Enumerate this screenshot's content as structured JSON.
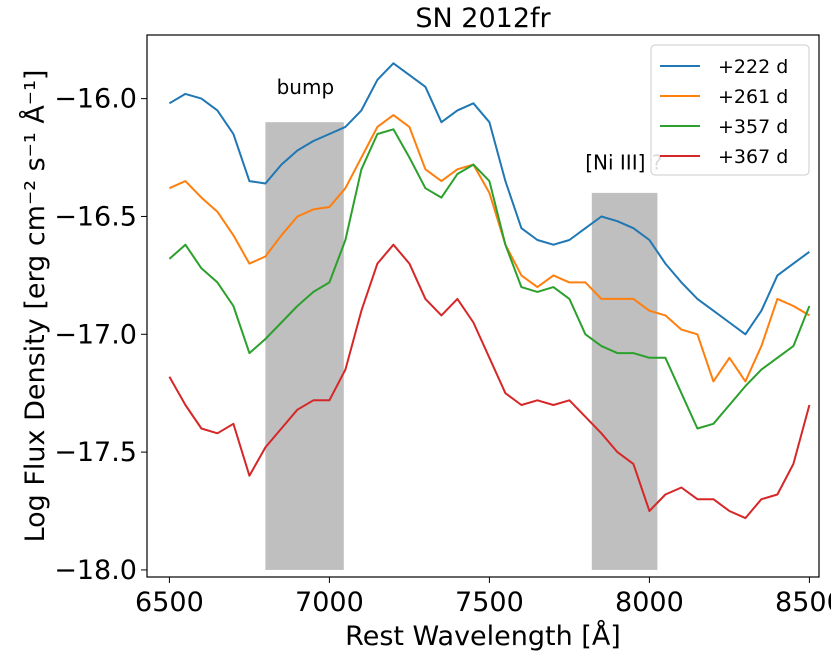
{
  "chart_data": {
    "type": "line",
    "title": "SN 2012fr",
    "xlabel": "Rest Wavelength [Å]",
    "ylabel": "Log Flux Density [erg cm⁻² s⁻¹ Å⁻¹]",
    "xlim": [
      6430,
      8530
    ],
    "ylim": [
      -18.03,
      -15.73
    ],
    "xticks": [
      6500,
      7000,
      7500,
      8000,
      8500
    ],
    "xtick_labels": [
      "6500",
      "7000",
      "7500",
      "8000",
      "8500"
    ],
    "yticks": [
      -16.0,
      -16.5,
      -17.0,
      -17.5,
      -18.0
    ],
    "ytick_labels": [
      "−16.0",
      "−16.5",
      "−17.0",
      "−17.5",
      "−18.0"
    ],
    "shaded_regions": [
      {
        "label": "bump",
        "x_range": [
          6800,
          7045
        ],
        "y_range": [
          -18.0,
          -16.1
        ],
        "color": "#bfbfbf"
      },
      {
        "label": "[Ni III] ?",
        "x_range": [
          7820,
          8025
        ],
        "y_range": [
          -18.0,
          -16.4
        ],
        "color": "#bfbfbf"
      }
    ],
    "legend_position": "top-right",
    "series": [
      {
        "name": "+222 d",
        "color": "#1f77b4",
        "x": [
          6500,
          6550,
          6600,
          6650,
          6700,
          6750,
          6800,
          6850,
          6900,
          6950,
          7000,
          7050,
          7100,
          7150,
          7200,
          7250,
          7300,
          7350,
          7400,
          7450,
          7500,
          7550,
          7600,
          7650,
          7700,
          7750,
          7800,
          7850,
          7900,
          7950,
          8000,
          8050,
          8100,
          8150,
          8200,
          8250,
          8300,
          8350,
          8400,
          8450,
          8500
        ],
        "values": [
          -16.02,
          -15.98,
          -16.0,
          -16.05,
          -16.15,
          -16.35,
          -16.36,
          -16.28,
          -16.22,
          -16.18,
          -16.15,
          -16.12,
          -16.05,
          -15.92,
          -15.85,
          -15.9,
          -15.95,
          -16.1,
          -16.05,
          -16.02,
          -16.1,
          -16.35,
          -16.55,
          -16.6,
          -16.62,
          -16.6,
          -16.55,
          -16.5,
          -16.52,
          -16.55,
          -16.6,
          -16.7,
          -16.78,
          -16.85,
          -16.9,
          -16.95,
          -17.0,
          -16.9,
          -16.75,
          -16.7,
          -16.65
        ]
      },
      {
        "name": "+261 d",
        "color": "#ff7f0e",
        "x": [
          6500,
          6550,
          6600,
          6650,
          6700,
          6750,
          6800,
          6850,
          6900,
          6950,
          7000,
          7050,
          7100,
          7150,
          7200,
          7250,
          7300,
          7350,
          7400,
          7450,
          7500,
          7550,
          7600,
          7650,
          7700,
          7750,
          7800,
          7850,
          7900,
          7950,
          8000,
          8050,
          8100,
          8150,
          8200,
          8250,
          8300,
          8350,
          8400,
          8450,
          8500
        ],
        "values": [
          -16.38,
          -16.35,
          -16.42,
          -16.48,
          -16.58,
          -16.7,
          -16.67,
          -16.58,
          -16.5,
          -16.47,
          -16.46,
          -16.38,
          -16.25,
          -16.12,
          -16.07,
          -16.12,
          -16.3,
          -16.35,
          -16.3,
          -16.28,
          -16.4,
          -16.62,
          -16.75,
          -16.8,
          -16.75,
          -16.78,
          -16.78,
          -16.85,
          -16.85,
          -16.85,
          -16.9,
          -16.92,
          -16.98,
          -17.0,
          -17.2,
          -17.1,
          -17.2,
          -17.05,
          -16.85,
          -16.88,
          -16.92
        ]
      },
      {
        "name": "+357 d",
        "color": "#2ca02c",
        "x": [
          6500,
          6550,
          6600,
          6650,
          6700,
          6750,
          6800,
          6850,
          6900,
          6950,
          7000,
          7050,
          7100,
          7150,
          7200,
          7250,
          7300,
          7350,
          7400,
          7450,
          7500,
          7550,
          7600,
          7650,
          7700,
          7750,
          7800,
          7850,
          7900,
          7950,
          8000,
          8050,
          8100,
          8150,
          8200,
          8250,
          8300,
          8350,
          8400,
          8450,
          8500
        ],
        "values": [
          -16.68,
          -16.62,
          -16.72,
          -16.78,
          -16.88,
          -17.08,
          -17.02,
          -16.95,
          -16.88,
          -16.82,
          -16.78,
          -16.6,
          -16.3,
          -16.15,
          -16.13,
          -16.25,
          -16.38,
          -16.42,
          -16.32,
          -16.28,
          -16.35,
          -16.62,
          -16.8,
          -16.82,
          -16.8,
          -16.85,
          -17.0,
          -17.05,
          -17.08,
          -17.08,
          -17.1,
          -17.1,
          -17.25,
          -17.4,
          -17.38,
          -17.3,
          -17.22,
          -17.15,
          -17.1,
          -17.05,
          -16.88
        ]
      },
      {
        "name": "+367 d",
        "color": "#d62728",
        "x": [
          6500,
          6550,
          6600,
          6650,
          6700,
          6750,
          6800,
          6850,
          6900,
          6950,
          7000,
          7050,
          7100,
          7150,
          7200,
          7250,
          7300,
          7350,
          7400,
          7450,
          7500,
          7550,
          7600,
          7650,
          7700,
          7750,
          7800,
          7850,
          7900,
          7950,
          8000,
          8050,
          8100,
          8150,
          8200,
          8250,
          8300,
          8350,
          8400,
          8450,
          8500
        ],
        "values": [
          -17.18,
          -17.3,
          -17.4,
          -17.42,
          -17.38,
          -17.6,
          -17.48,
          -17.4,
          -17.32,
          -17.28,
          -17.28,
          -17.15,
          -16.9,
          -16.7,
          -16.62,
          -16.7,
          -16.85,
          -16.92,
          -16.85,
          -16.95,
          -17.1,
          -17.25,
          -17.3,
          -17.28,
          -17.3,
          -17.28,
          -17.35,
          -17.42,
          -17.5,
          -17.55,
          -17.75,
          -17.68,
          -17.65,
          -17.7,
          -17.7,
          -17.75,
          -17.78,
          -17.7,
          -17.68,
          -17.55,
          -17.3
        ]
      }
    ],
    "annotations": [
      {
        "text": "bump",
        "x": 6925,
        "y": -15.98
      },
      {
        "text": "[Ni III] ?",
        "x": 7920,
        "y": -16.3
      }
    ]
  }
}
